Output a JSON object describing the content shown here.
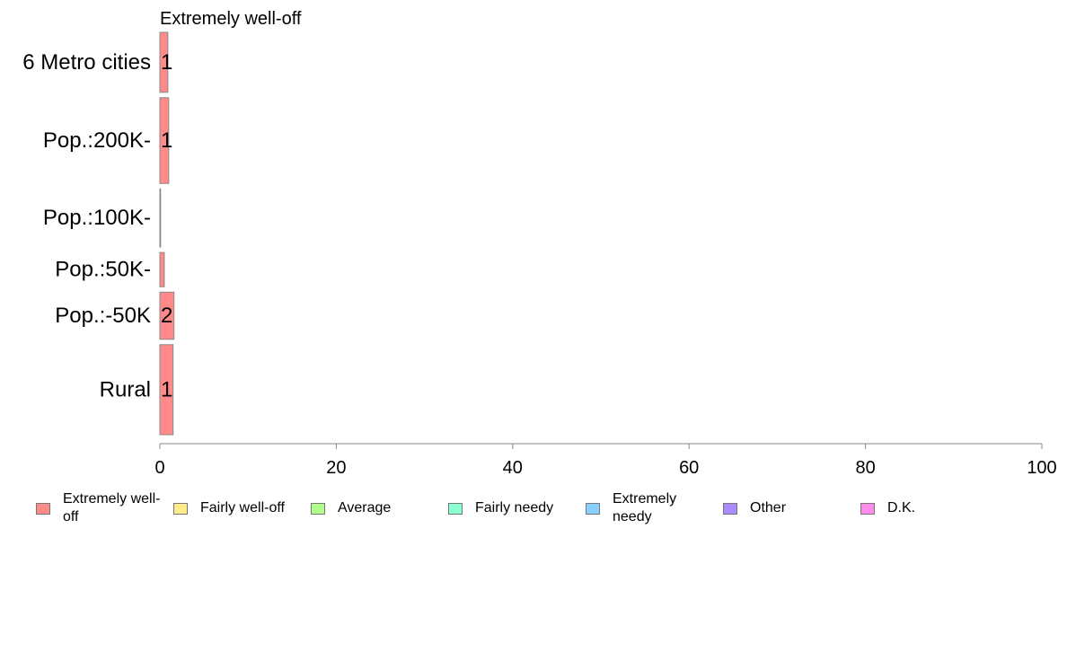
{
  "chart_data": {
    "type": "bar",
    "orientation": "horizontal",
    "panel_title": "Extremely well-off",
    "categories": [
      "6 Metro cities",
      "Pop.:200K-",
      "Pop.:100K-",
      "Pop.:50K-",
      "Pop.:-50K",
      "Rural"
    ],
    "values": [
      0.9,
      1.0,
      0.0,
      0.5,
      1.6,
      1.5
    ],
    "bar_labels": [
      "1",
      "1",
      "",
      "",
      "2",
      "1"
    ],
    "relative_heights": [
      0.7,
      1.0,
      0.68,
      0.4,
      0.55,
      1.05
    ],
    "xlim": [
      0,
      100
    ],
    "xticks": [
      "0",
      "20",
      "40",
      "60",
      "80",
      "100"
    ],
    "legend": [
      {
        "label": "Extremely well-off",
        "color": "#ff8a8a"
      },
      {
        "label": "Fairly well-off",
        "color": "#ffec8a"
      },
      {
        "label": "Average",
        "color": "#b0ff8a"
      },
      {
        "label": "Fairly needy",
        "color": "#8affd0"
      },
      {
        "label": "Extremely needy",
        "color": "#8ad0ff"
      },
      {
        "label": "Other",
        "color": "#a98aff"
      },
      {
        "label": "D.K.",
        "color": "#ff8aec"
      }
    ],
    "legend_placement": "bottom"
  }
}
